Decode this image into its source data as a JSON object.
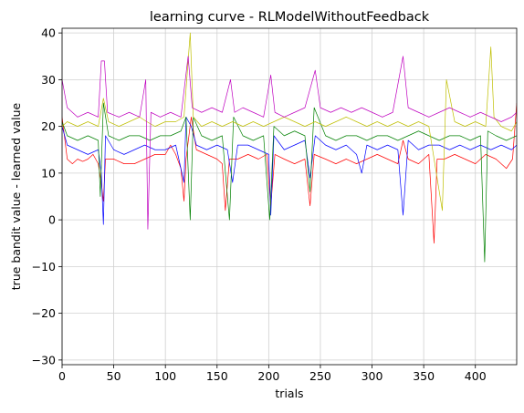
{
  "chart_data": {
    "type": "line",
    "title": "learning curve - RLModelWithoutFeedback",
    "xlabel": "trials",
    "ylabel": "true bandit value - learned value",
    "xlim": [
      0,
      440
    ],
    "ylim": [
      -31,
      41
    ],
    "xticks": [
      0,
      50,
      100,
      150,
      200,
      250,
      300,
      350,
      400
    ],
    "yticks": [
      -30,
      -20,
      -10,
      0,
      10,
      20,
      30,
      40
    ],
    "grid": true,
    "series_count": 5,
    "series": [
      {
        "color": "#ff0000",
        "points": [
          [
            0,
            22
          ],
          [
            5,
            13
          ],
          [
            10,
            12
          ],
          [
            15,
            13
          ],
          [
            20,
            12.5
          ],
          [
            25,
            13
          ],
          [
            30,
            14
          ],
          [
            35,
            12
          ],
          [
            38,
            8
          ],
          [
            40,
            4
          ],
          [
            42,
            13
          ],
          [
            50,
            13
          ],
          [
            60,
            12
          ],
          [
            70,
            12
          ],
          [
            80,
            13
          ],
          [
            90,
            14
          ],
          [
            100,
            14
          ],
          [
            105,
            16
          ],
          [
            110,
            14
          ],
          [
            115,
            11
          ],
          [
            118,
            4
          ],
          [
            120,
            13
          ],
          [
            125,
            22
          ],
          [
            130,
            15
          ],
          [
            140,
            14
          ],
          [
            150,
            13
          ],
          [
            155,
            12
          ],
          [
            158,
            2
          ],
          [
            162,
            13
          ],
          [
            170,
            13
          ],
          [
            180,
            14
          ],
          [
            190,
            13
          ],
          [
            198,
            14
          ],
          [
            202,
            3
          ],
          [
            206,
            14
          ],
          [
            215,
            13
          ],
          [
            225,
            12
          ],
          [
            235,
            13
          ],
          [
            240,
            3
          ],
          [
            244,
            14
          ],
          [
            255,
            13
          ],
          [
            265,
            12
          ],
          [
            275,
            13
          ],
          [
            285,
            12
          ],
          [
            295,
            13
          ],
          [
            305,
            14
          ],
          [
            315,
            13
          ],
          [
            325,
            12
          ],
          [
            330,
            17
          ],
          [
            335,
            13
          ],
          [
            345,
            12
          ],
          [
            355,
            14
          ],
          [
            360,
            -5
          ],
          [
            363,
            13
          ],
          [
            370,
            13
          ],
          [
            380,
            14
          ],
          [
            390,
            13
          ],
          [
            400,
            12
          ],
          [
            410,
            14
          ],
          [
            420,
            13
          ],
          [
            430,
            11
          ],
          [
            436,
            13
          ],
          [
            440,
            25
          ]
        ]
      },
      {
        "color": "#0000ff",
        "points": [
          [
            0,
            20
          ],
          [
            5,
            16
          ],
          [
            15,
            15
          ],
          [
            25,
            14
          ],
          [
            35,
            15
          ],
          [
            38,
            10
          ],
          [
            40,
            -1
          ],
          [
            42,
            18
          ],
          [
            50,
            15
          ],
          [
            60,
            14
          ],
          [
            70,
            15
          ],
          [
            80,
            16
          ],
          [
            90,
            15
          ],
          [
            100,
            15
          ],
          [
            110,
            16
          ],
          [
            118,
            8
          ],
          [
            120,
            22
          ],
          [
            125,
            20
          ],
          [
            130,
            16
          ],
          [
            140,
            15
          ],
          [
            150,
            16
          ],
          [
            160,
            15
          ],
          [
            165,
            8
          ],
          [
            170,
            16
          ],
          [
            180,
            16
          ],
          [
            190,
            15
          ],
          [
            200,
            14
          ],
          [
            202,
            1
          ],
          [
            205,
            18
          ],
          [
            215,
            15
          ],
          [
            225,
            16
          ],
          [
            235,
            17
          ],
          [
            240,
            9
          ],
          [
            245,
            18
          ],
          [
            255,
            16
          ],
          [
            265,
            15
          ],
          [
            275,
            16
          ],
          [
            285,
            14
          ],
          [
            290,
            10
          ],
          [
            295,
            16
          ],
          [
            305,
            15
          ],
          [
            315,
            16
          ],
          [
            325,
            15
          ],
          [
            330,
            1
          ],
          [
            335,
            17
          ],
          [
            345,
            15
          ],
          [
            355,
            16
          ],
          [
            365,
            16
          ],
          [
            375,
            15
          ],
          [
            385,
            16
          ],
          [
            395,
            15
          ],
          [
            405,
            16
          ],
          [
            415,
            15
          ],
          [
            425,
            16
          ],
          [
            435,
            15
          ],
          [
            440,
            16
          ]
        ]
      },
      {
        "color": "#008000",
        "points": [
          [
            0,
            21
          ],
          [
            5,
            18
          ],
          [
            15,
            17
          ],
          [
            25,
            18
          ],
          [
            35,
            17
          ],
          [
            37,
            5
          ],
          [
            40,
            25
          ],
          [
            45,
            18
          ],
          [
            55,
            17
          ],
          [
            65,
            18
          ],
          [
            75,
            18
          ],
          [
            85,
            17
          ],
          [
            95,
            18
          ],
          [
            105,
            18
          ],
          [
            115,
            19
          ],
          [
            120,
            22
          ],
          [
            124,
            0
          ],
          [
            127,
            22
          ],
          [
            135,
            18
          ],
          [
            145,
            17
          ],
          [
            155,
            18
          ],
          [
            162,
            0
          ],
          [
            166,
            22
          ],
          [
            175,
            18
          ],
          [
            185,
            17
          ],
          [
            195,
            18
          ],
          [
            201,
            0
          ],
          [
            205,
            20
          ],
          [
            215,
            18
          ],
          [
            225,
            19
          ],
          [
            235,
            18
          ],
          [
            240,
            6
          ],
          [
            244,
            24
          ],
          [
            255,
            18
          ],
          [
            265,
            17
          ],
          [
            275,
            18
          ],
          [
            285,
            18
          ],
          [
            295,
            17
          ],
          [
            305,
            18
          ],
          [
            315,
            18
          ],
          [
            325,
            17
          ],
          [
            335,
            18
          ],
          [
            345,
            19
          ],
          [
            355,
            18
          ],
          [
            365,
            17
          ],
          [
            375,
            18
          ],
          [
            385,
            18
          ],
          [
            395,
            17
          ],
          [
            405,
            18
          ],
          [
            409,
            -9
          ],
          [
            412,
            19
          ],
          [
            420,
            18
          ],
          [
            430,
            17
          ],
          [
            440,
            18
          ]
        ]
      },
      {
        "color": "#bfbf00",
        "points": [
          [
            0,
            20
          ],
          [
            5,
            21
          ],
          [
            15,
            20
          ],
          [
            25,
            21
          ],
          [
            35,
            20
          ],
          [
            40,
            26
          ],
          [
            45,
            21
          ],
          [
            55,
            20
          ],
          [
            65,
            21
          ],
          [
            75,
            22
          ],
          [
            82,
            21
          ],
          [
            90,
            20
          ],
          [
            100,
            21
          ],
          [
            110,
            21
          ],
          [
            118,
            22
          ],
          [
            124,
            40
          ],
          [
            127,
            22
          ],
          [
            135,
            20
          ],
          [
            145,
            21
          ],
          [
            155,
            20
          ],
          [
            165,
            21
          ],
          [
            175,
            20
          ],
          [
            185,
            21
          ],
          [
            195,
            20
          ],
          [
            205,
            21
          ],
          [
            215,
            22
          ],
          [
            225,
            21
          ],
          [
            235,
            20
          ],
          [
            245,
            21
          ],
          [
            255,
            20
          ],
          [
            265,
            21
          ],
          [
            275,
            22
          ],
          [
            285,
            21
          ],
          [
            295,
            20
          ],
          [
            305,
            21
          ],
          [
            315,
            20
          ],
          [
            325,
            21
          ],
          [
            335,
            20
          ],
          [
            345,
            21
          ],
          [
            355,
            20
          ],
          [
            368,
            2
          ],
          [
            372,
            30
          ],
          [
            380,
            21
          ],
          [
            390,
            20
          ],
          [
            400,
            21
          ],
          [
            410,
            20
          ],
          [
            415,
            37
          ],
          [
            418,
            22
          ],
          [
            425,
            20
          ],
          [
            435,
            19
          ],
          [
            440,
            21
          ]
        ]
      },
      {
        "color": "#bf00bf",
        "points": [
          [
            0,
            30
          ],
          [
            5,
            24
          ],
          [
            15,
            22
          ],
          [
            25,
            23
          ],
          [
            35,
            22
          ],
          [
            38,
            34
          ],
          [
            41,
            34
          ],
          [
            44,
            23
          ],
          [
            55,
            22
          ],
          [
            65,
            23
          ],
          [
            75,
            22
          ],
          [
            81,
            30
          ],
          [
            83,
            -2
          ],
          [
            86,
            23
          ],
          [
            95,
            22
          ],
          [
            105,
            23
          ],
          [
            115,
            22
          ],
          [
            122,
            35
          ],
          [
            126,
            24
          ],
          [
            135,
            23
          ],
          [
            145,
            24
          ],
          [
            155,
            23
          ],
          [
            163,
            30
          ],
          [
            167,
            23
          ],
          [
            175,
            24
          ],
          [
            185,
            23
          ],
          [
            195,
            22
          ],
          [
            202,
            31
          ],
          [
            206,
            23
          ],
          [
            215,
            22
          ],
          [
            225,
            23
          ],
          [
            235,
            24
          ],
          [
            245,
            32
          ],
          [
            250,
            24
          ],
          [
            260,
            23
          ],
          [
            270,
            24
          ],
          [
            280,
            23
          ],
          [
            290,
            24
          ],
          [
            300,
            23
          ],
          [
            310,
            22
          ],
          [
            320,
            23
          ],
          [
            330,
            35
          ],
          [
            335,
            24
          ],
          [
            345,
            23
          ],
          [
            355,
            22
          ],
          [
            365,
            23
          ],
          [
            375,
            24
          ],
          [
            385,
            23
          ],
          [
            395,
            22
          ],
          [
            405,
            23
          ],
          [
            415,
            22
          ],
          [
            425,
            21
          ],
          [
            435,
            22
          ],
          [
            440,
            23
          ]
        ]
      }
    ]
  }
}
